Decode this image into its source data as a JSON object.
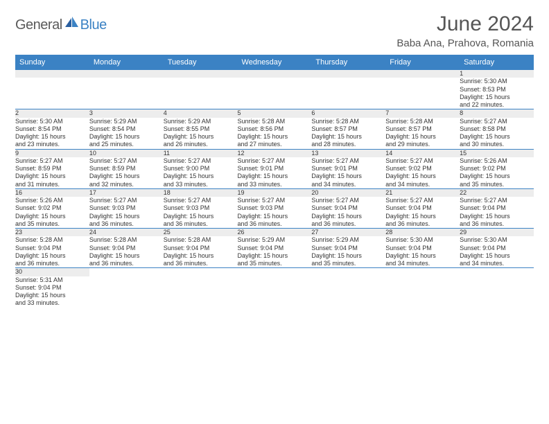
{
  "logo": {
    "part1": "General",
    "part2": "Blue"
  },
  "title": "June 2024",
  "location": "Baba Ana, Prahova, Romania",
  "colors": {
    "header_bg": "#3b82c4",
    "header_text": "#ffffff",
    "daynum_bg": "#ededed",
    "row_divider": "#3b82c4",
    "title_color": "#555555",
    "text_color": "#333333"
  },
  "days_of_week": [
    "Sunday",
    "Monday",
    "Tuesday",
    "Wednesday",
    "Thursday",
    "Friday",
    "Saturday"
  ],
  "weeks": [
    [
      null,
      null,
      null,
      null,
      null,
      null,
      {
        "n": "1",
        "sr": "5:30 AM",
        "ss": "8:53 PM",
        "dl1": "15 hours",
        "dl2": "and 22 minutes."
      }
    ],
    [
      {
        "n": "2",
        "sr": "5:30 AM",
        "ss": "8:54 PM",
        "dl1": "15 hours",
        "dl2": "and 23 minutes."
      },
      {
        "n": "3",
        "sr": "5:29 AM",
        "ss": "8:54 PM",
        "dl1": "15 hours",
        "dl2": "and 25 minutes."
      },
      {
        "n": "4",
        "sr": "5:29 AM",
        "ss": "8:55 PM",
        "dl1": "15 hours",
        "dl2": "and 26 minutes."
      },
      {
        "n": "5",
        "sr": "5:28 AM",
        "ss": "8:56 PM",
        "dl1": "15 hours",
        "dl2": "and 27 minutes."
      },
      {
        "n": "6",
        "sr": "5:28 AM",
        "ss": "8:57 PM",
        "dl1": "15 hours",
        "dl2": "and 28 minutes."
      },
      {
        "n": "7",
        "sr": "5:28 AM",
        "ss": "8:57 PM",
        "dl1": "15 hours",
        "dl2": "and 29 minutes."
      },
      {
        "n": "8",
        "sr": "5:27 AM",
        "ss": "8:58 PM",
        "dl1": "15 hours",
        "dl2": "and 30 minutes."
      }
    ],
    [
      {
        "n": "9",
        "sr": "5:27 AM",
        "ss": "8:59 PM",
        "dl1": "15 hours",
        "dl2": "and 31 minutes."
      },
      {
        "n": "10",
        "sr": "5:27 AM",
        "ss": "8:59 PM",
        "dl1": "15 hours",
        "dl2": "and 32 minutes."
      },
      {
        "n": "11",
        "sr": "5:27 AM",
        "ss": "9:00 PM",
        "dl1": "15 hours",
        "dl2": "and 33 minutes."
      },
      {
        "n": "12",
        "sr": "5:27 AM",
        "ss": "9:01 PM",
        "dl1": "15 hours",
        "dl2": "and 33 minutes."
      },
      {
        "n": "13",
        "sr": "5:27 AM",
        "ss": "9:01 PM",
        "dl1": "15 hours",
        "dl2": "and 34 minutes."
      },
      {
        "n": "14",
        "sr": "5:27 AM",
        "ss": "9:02 PM",
        "dl1": "15 hours",
        "dl2": "and 34 minutes."
      },
      {
        "n": "15",
        "sr": "5:26 AM",
        "ss": "9:02 PM",
        "dl1": "15 hours",
        "dl2": "and 35 minutes."
      }
    ],
    [
      {
        "n": "16",
        "sr": "5:26 AM",
        "ss": "9:02 PM",
        "dl1": "15 hours",
        "dl2": "and 35 minutes."
      },
      {
        "n": "17",
        "sr": "5:27 AM",
        "ss": "9:03 PM",
        "dl1": "15 hours",
        "dl2": "and 36 minutes."
      },
      {
        "n": "18",
        "sr": "5:27 AM",
        "ss": "9:03 PM",
        "dl1": "15 hours",
        "dl2": "and 36 minutes."
      },
      {
        "n": "19",
        "sr": "5:27 AM",
        "ss": "9:03 PM",
        "dl1": "15 hours",
        "dl2": "and 36 minutes."
      },
      {
        "n": "20",
        "sr": "5:27 AM",
        "ss": "9:04 PM",
        "dl1": "15 hours",
        "dl2": "and 36 minutes."
      },
      {
        "n": "21",
        "sr": "5:27 AM",
        "ss": "9:04 PM",
        "dl1": "15 hours",
        "dl2": "and 36 minutes."
      },
      {
        "n": "22",
        "sr": "5:27 AM",
        "ss": "9:04 PM",
        "dl1": "15 hours",
        "dl2": "and 36 minutes."
      }
    ],
    [
      {
        "n": "23",
        "sr": "5:28 AM",
        "ss": "9:04 PM",
        "dl1": "15 hours",
        "dl2": "and 36 minutes."
      },
      {
        "n": "24",
        "sr": "5:28 AM",
        "ss": "9:04 PM",
        "dl1": "15 hours",
        "dl2": "and 36 minutes."
      },
      {
        "n": "25",
        "sr": "5:28 AM",
        "ss": "9:04 PM",
        "dl1": "15 hours",
        "dl2": "and 36 minutes."
      },
      {
        "n": "26",
        "sr": "5:29 AM",
        "ss": "9:04 PM",
        "dl1": "15 hours",
        "dl2": "and 35 minutes."
      },
      {
        "n": "27",
        "sr": "5:29 AM",
        "ss": "9:04 PM",
        "dl1": "15 hours",
        "dl2": "and 35 minutes."
      },
      {
        "n": "28",
        "sr": "5:30 AM",
        "ss": "9:04 PM",
        "dl1": "15 hours",
        "dl2": "and 34 minutes."
      },
      {
        "n": "29",
        "sr": "5:30 AM",
        "ss": "9:04 PM",
        "dl1": "15 hours",
        "dl2": "and 34 minutes."
      }
    ],
    [
      {
        "n": "30",
        "sr": "5:31 AM",
        "ss": "9:04 PM",
        "dl1": "15 hours",
        "dl2": "and 33 minutes."
      },
      null,
      null,
      null,
      null,
      null,
      null
    ]
  ],
  "labels": {
    "sunrise": "Sunrise:",
    "sunset": "Sunset:",
    "daylight": "Daylight:"
  }
}
